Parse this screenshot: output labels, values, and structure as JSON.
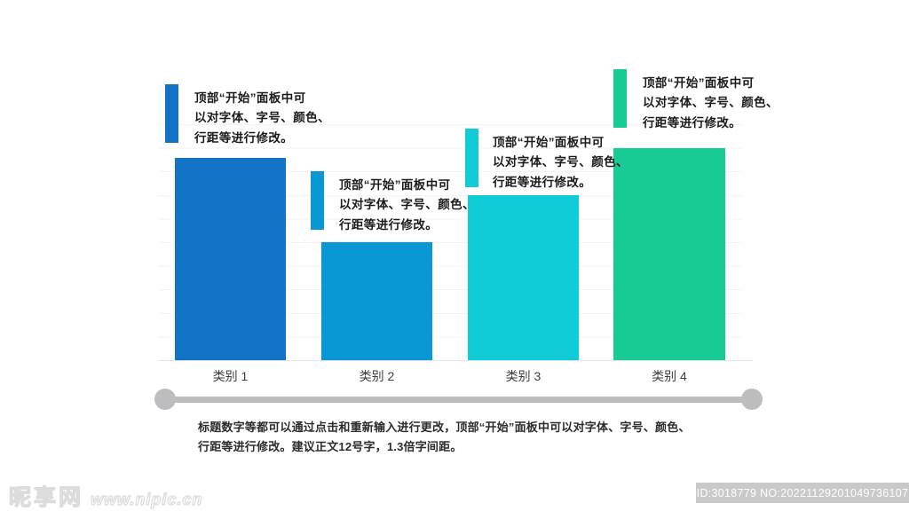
{
  "chart_data": {
    "type": "bar",
    "title": "",
    "xlabel": "",
    "ylabel": "",
    "categories": [
      "类别 1",
      "类别 2",
      "类别 3",
      "类别 4"
    ],
    "values": [
      4.3,
      2.5,
      3.5,
      4.5
    ],
    "colors": [
      "#1272c6",
      "#0a98d4",
      "#10ccd6",
      "#16cb94"
    ],
    "ylim": [
      0,
      5
    ],
    "gridline_step": 0.5,
    "grid": "horizontal-light",
    "legend": "none",
    "axis_labels_visible": false
  },
  "annotation_lines": [
    "顶部“开始”面板中可",
    "以对字体、字号、颜色、",
    "行距等进行修改。"
  ],
  "description": {
    "line1": "标题数字等都可以通过点击和重新输入进行更改，顶部“开始”面板中可以对字体、字号、颜色、",
    "line2": "行距等进行修改。建议正文12号字，1.3倍字间距。"
  },
  "watermark": {
    "site_name": "昵享网",
    "site_url": "www.nipic.cn",
    "image_id": "ID:3018779 NO:20221129201049736107"
  },
  "style": {
    "timeline_color": "#bdbdbf",
    "gridline_color": "#f1f1f4",
    "background": "#ffffff"
  }
}
